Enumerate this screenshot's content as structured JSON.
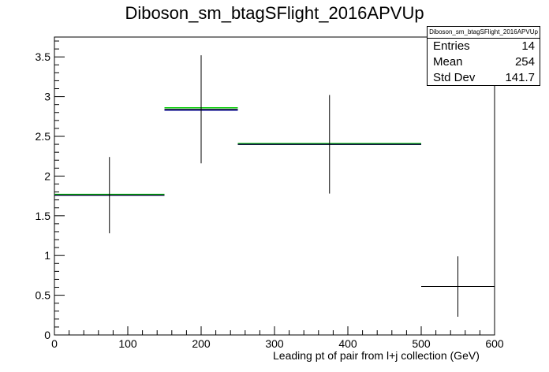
{
  "chart_data": {
    "type": "histogram",
    "title": "Diboson_sm_btagSFlight_2016APVUp",
    "xlabel": "Leading pt of pair from l+j collection (GeV)",
    "ylabel": "",
    "xlim": [
      0,
      600
    ],
    "ylim": [
      0,
      3.75
    ],
    "x_ticks": [
      "0",
      "100",
      "200",
      "300",
      "400",
      "500",
      "600"
    ],
    "y_ticks": [
      "0",
      "0.5",
      "1",
      "1.5",
      "2",
      "2.5",
      "3",
      "3.5"
    ],
    "bins": [
      {
        "x_low": 0,
        "x_high": 150,
        "value": 1.76,
        "error": 0.48
      },
      {
        "x_low": 150,
        "x_high": 250,
        "value": 2.84,
        "error": 0.68
      },
      {
        "x_low": 250,
        "x_high": 500,
        "value": 2.4,
        "error": 0.62
      },
      {
        "x_low": 500,
        "x_high": 600,
        "value": 0.61,
        "error": 0.38
      }
    ],
    "variation_lines": [
      {
        "color": "#00cc00",
        "values": [
          1.77,
          2.86,
          2.41,
          null
        ]
      },
      {
        "color": "#000099",
        "values": [
          1.76,
          2.83,
          2.4,
          null
        ]
      }
    ],
    "stats": {
      "title": "Diboson_sm_btagSFlight_2016APVUp",
      "entries_label": "Entries",
      "entries": "14",
      "mean_label": "Mean",
      "mean": "254",
      "stddev_label": "Std Dev",
      "stddev": "141.7"
    }
  }
}
